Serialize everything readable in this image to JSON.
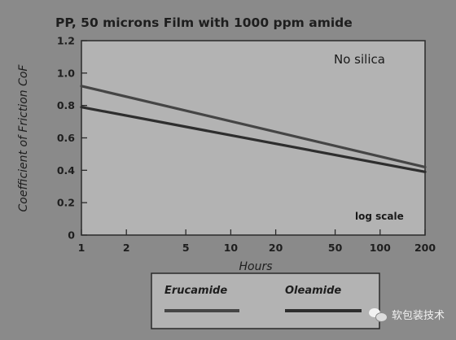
{
  "chart_data": {
    "type": "line",
    "title": "PP, 50 microns Film with 1000 ppm amide",
    "xlabel": "Hours",
    "ylabel": "Coefficient of Friction CoF",
    "xscale": "log",
    "xlim": [
      1,
      200
    ],
    "ylim": [
      0,
      1.2
    ],
    "x_ticks": [
      {
        "value": 1,
        "label": "1"
      },
      {
        "value": 2,
        "label": "2"
      },
      {
        "value": 5,
        "label": "5"
      },
      {
        "value": 10,
        "label": "10"
      },
      {
        "value": 20,
        "label": "20"
      },
      {
        "value": 50,
        "label": "50"
      },
      {
        "value": 100,
        "label": "100"
      },
      {
        "value": 200,
        "label": "200"
      }
    ],
    "y_ticks": [
      {
        "value": 0,
        "label": "0"
      },
      {
        "value": 0.2,
        "label": "0.2"
      },
      {
        "value": 0.4,
        "label": "0.4"
      },
      {
        "value": 0.6,
        "label": "0.6"
      },
      {
        "value": 0.8,
        "label": "0.8"
      },
      {
        "value": 1.0,
        "label": "1.0"
      },
      {
        "value": 1.2,
        "label": "1.2"
      }
    ],
    "series": [
      {
        "name": "Erucamide",
        "x": [
          1,
          200
        ],
        "y": [
          0.92,
          0.42
        ],
        "color": "#454545"
      },
      {
        "name": "Oleamide",
        "x": [
          1,
          200
        ],
        "y": [
          0.79,
          0.39
        ],
        "color": "#2e2e2e"
      }
    ],
    "annotations": {
      "condition": "No silica",
      "scale_note": "log scale"
    },
    "legend_position": "bottom",
    "grid": false
  },
  "watermark": {
    "text": "软包装技术",
    "icon": "wechat-icon"
  },
  "colors": {
    "background": "#8a8a8a",
    "plot_area": "#b3b3b3",
    "axis": "#2a2a2a"
  }
}
